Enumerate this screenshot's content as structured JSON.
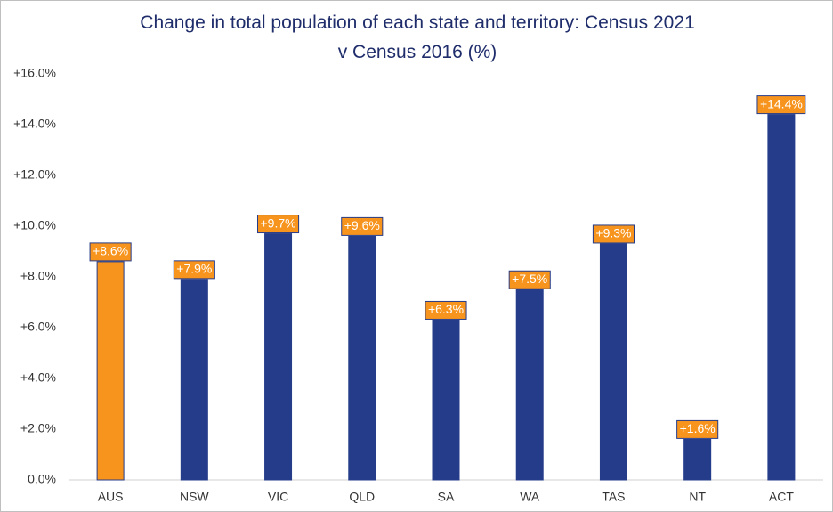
{
  "chart_data": {
    "type": "bar",
    "title": "Change in total population of each state and territory: Census 2021 v Census 2016 (%)",
    "categories": [
      "AUS",
      "NSW",
      "VIC",
      "QLD",
      "SA",
      "WA",
      "TAS",
      "NT",
      "ACT"
    ],
    "values": [
      8.6,
      7.9,
      9.7,
      9.6,
      6.3,
      7.5,
      9.3,
      1.6,
      14.4
    ],
    "value_labels": [
      "+8.6%",
      "+7.9%",
      "+9.7%",
      "+9.6%",
      "+6.3%",
      "+7.5%",
      "+9.3%",
      "+1.6%",
      "+14.4%"
    ],
    "colors": [
      "#f7941d",
      "#253c8a",
      "#253c8a",
      "#253c8a",
      "#253c8a",
      "#253c8a",
      "#253c8a",
      "#253c8a",
      "#253c8a"
    ],
    "ylim": [
      0,
      16
    ],
    "yticks": [
      {
        "value": 0,
        "label": "0.0%"
      },
      {
        "value": 2,
        "label": "+2.0%"
      },
      {
        "value": 4,
        "label": "+4.0%"
      },
      {
        "value": 6,
        "label": "+6.0%"
      },
      {
        "value": 8,
        "label": "+8.0%"
      },
      {
        "value": 10,
        "label": "+10.0%"
      },
      {
        "value": 12,
        "label": "+12.0%"
      },
      {
        "value": 14,
        "label": "+14.0%"
      },
      {
        "value": 16,
        "label": "+16.0%"
      }
    ],
    "grid": false
  }
}
